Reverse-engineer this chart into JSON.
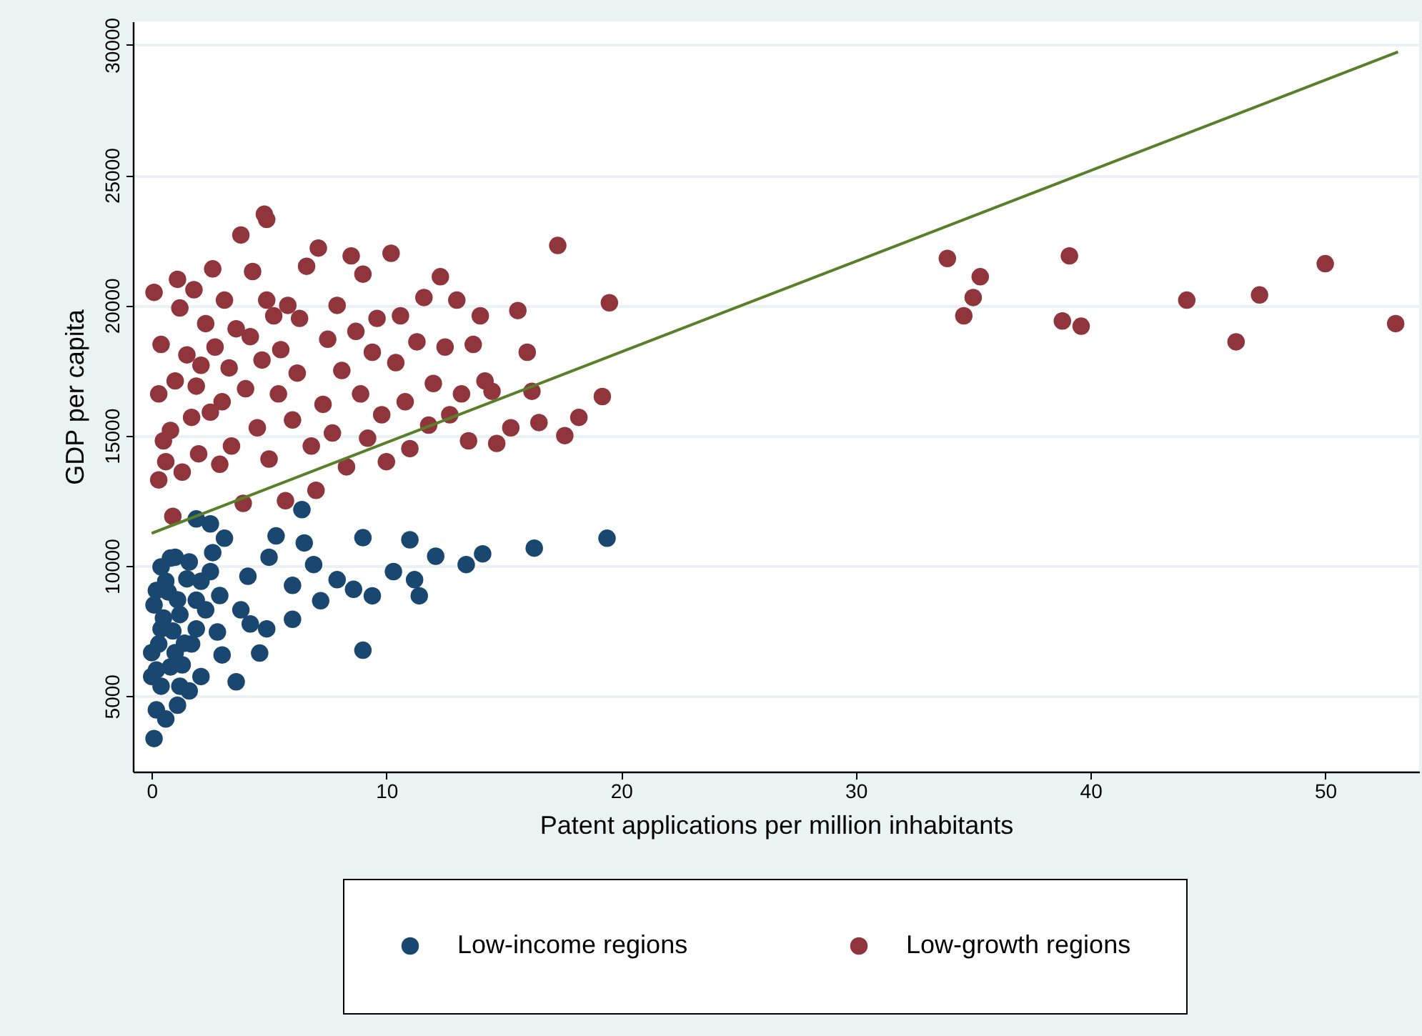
{
  "chart_data": {
    "type": "scatter",
    "xlabel": "Patent applications per million inhabitants",
    "ylabel": "GDP per capita",
    "xlim": [
      -0.8,
      54
    ],
    "xticks": [
      0,
      10,
      20,
      30,
      40,
      50
    ],
    "ylim": [
      2100,
      30900
    ],
    "yticks": [
      5000,
      10000,
      15000,
      20000,
      25000,
      30000
    ],
    "grid": "y",
    "legend": "bottom",
    "series": [
      {
        "name": "Low-income regions",
        "color": "#1a476f",
        "marker": "circle",
        "x": [
          19.4,
          16.3,
          14.1,
          13.4,
          12.1,
          11.4,
          11.0,
          11.2,
          10.3,
          9.0,
          9.0,
          9.4,
          8.6,
          7.9,
          7.2,
          6.9,
          6.4,
          6.5,
          6.0,
          6.0,
          4.6,
          3.6,
          2.8,
          3.0,
          5.3,
          5.0,
          4.1,
          4.2,
          3.8,
          4.9,
          1.9,
          2.5,
          3.1,
          2.5,
          2.9,
          1.9,
          1.0,
          0.4,
          0.1,
          0.2,
          0.6,
          1.1,
          0.0,
          1.2,
          1.6,
          2.1,
          0.4,
          1.4,
          0.1,
          1.2,
          1.9,
          0.6,
          0.0,
          0.2,
          1.6,
          1.0,
          0.8,
          0.4,
          2.1,
          2.3,
          2.6,
          0.3,
          0.5,
          0.7,
          0.9,
          1.1,
          1.3,
          0.2,
          0.8,
          1.5,
          1.7
        ],
        "values": [
          11060,
          10680,
          10460,
          10050,
          10370,
          8850,
          11000,
          9470,
          9780,
          6760,
          11080,
          8850,
          9100,
          9470,
          8660,
          10050,
          12160,
          10880,
          7950,
          9250,
          6650,
          5550,
          7460,
          6580,
          11150,
          10330,
          9600,
          7770,
          8310,
          7580,
          11800,
          11610,
          11060,
          9780,
          8860,
          8680,
          10330,
          9960,
          3370,
          4470,
          4120,
          4650,
          5750,
          5380,
          5200,
          5750,
          7580,
          7030,
          8500,
          8130,
          7580,
          9410,
          6670,
          9050,
          10150,
          6670,
          6120,
          5380,
          9410,
          8310,
          10510,
          7000,
          8000,
          9000,
          7500,
          8700,
          6200,
          6000,
          10300,
          9500,
          7000
        ]
      },
      {
        "name": "Low-growth regions",
        "color": "#90353b",
        "marker": "circle",
        "x": [
          0.1,
          0.9,
          1.1,
          0.3,
          0.4,
          0.3,
          0.5,
          0.6,
          0.8,
          1.0,
          1.2,
          1.3,
          1.5,
          1.7,
          1.8,
          1.9,
          2.0,
          2.1,
          2.3,
          2.5,
          2.6,
          2.7,
          2.9,
          3.0,
          3.1,
          3.3,
          3.4,
          3.6,
          3.8,
          3.9,
          4.0,
          4.2,
          4.3,
          4.5,
          4.7,
          4.8,
          4.9,
          4.9,
          5.0,
          5.2,
          5.4,
          5.5,
          5.7,
          5.8,
          6.0,
          6.2,
          6.3,
          6.6,
          6.8,
          7.0,
          7.1,
          7.3,
          7.5,
          7.7,
          7.9,
          8.1,
          8.3,
          8.5,
          8.7,
          8.9,
          9.0,
          9.2,
          9.4,
          9.6,
          9.8,
          10.0,
          10.2,
          10.4,
          10.6,
          10.8,
          11.0,
          11.3,
          11.6,
          11.8,
          12.0,
          12.3,
          12.5,
          12.7,
          13.0,
          13.2,
          13.5,
          13.7,
          14.0,
          14.2,
          14.5,
          14.7,
          15.3,
          15.6,
          16.0,
          16.2,
          16.5,
          17.3,
          17.6,
          18.2,
          19.2,
          19.5,
          33.9,
          34.6,
          35.0,
          35.3,
          38.8,
          39.1,
          39.6,
          44.1,
          46.2,
          47.2,
          50.0,
          53.0
        ],
        "values": [
          20500,
          11900,
          21000,
          16600,
          18500,
          13300,
          14800,
          14000,
          15200,
          17100,
          19900,
          13600,
          18100,
          15700,
          20600,
          16900,
          14300,
          17700,
          19300,
          15900,
          21400,
          18400,
          13900,
          16300,
          20200,
          17600,
          14600,
          19100,
          22700,
          12400,
          16800,
          18800,
          21300,
          15300,
          17900,
          23500,
          23300,
          20200,
          14100,
          19600,
          16600,
          18300,
          12500,
          20000,
          15600,
          17400,
          19500,
          21500,
          14600,
          12900,
          22200,
          16200,
          18700,
          15100,
          20000,
          17500,
          13800,
          21900,
          19000,
          16600,
          21200,
          14900,
          18200,
          19500,
          15800,
          14000,
          22000,
          17800,
          19600,
          16300,
          14500,
          18600,
          20300,
          15400,
          17000,
          21100,
          18400,
          15800,
          20200,
          16600,
          14800,
          18500,
          19600,
          17100,
          16700,
          14700,
          15300,
          19800,
          18200,
          16700,
          15500,
          22300,
          15000,
          15700,
          16500,
          20100,
          21800,
          19600,
          20300,
          21100,
          19400,
          21900,
          19200,
          20200,
          18600,
          20400,
          21600,
          19300
        ]
      },
      {
        "color": "#5a7f2a",
        "type": "line",
        "x": [
          0,
          53.1
        ],
        "values": [
          11250,
          29730
        ]
      }
    ]
  }
}
